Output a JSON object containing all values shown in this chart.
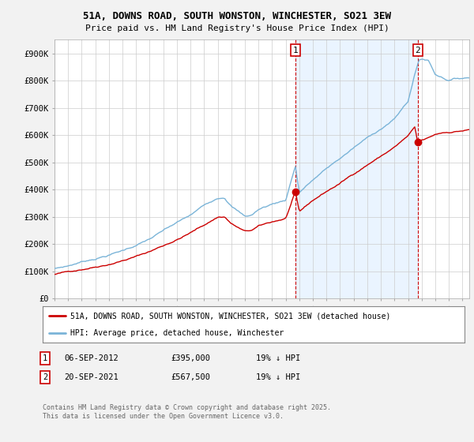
{
  "title_line1": "51A, DOWNS ROAD, SOUTH WONSTON, WINCHESTER, SO21 3EW",
  "title_line2": "Price paid vs. HM Land Registry's House Price Index (HPI)",
  "ylim": [
    0,
    950000
  ],
  "yticks": [
    0,
    100000,
    200000,
    300000,
    400000,
    500000,
    600000,
    700000,
    800000,
    900000
  ],
  "ytick_labels": [
    "£0",
    "£100K",
    "£200K",
    "£300K",
    "£400K",
    "£500K",
    "£600K",
    "£700K",
    "£800K",
    "£900K"
  ],
  "hpi_color": "#7ab4d8",
  "hpi_fill_color": "#ddeeff",
  "price_color": "#cc0000",
  "vline_color": "#cc0000",
  "background_color": "#f2f2f2",
  "plot_bg_color": "#ffffff",
  "legend_label_red": "51A, DOWNS ROAD, SOUTH WONSTON, WINCHESTER, SO21 3EW (detached house)",
  "legend_label_blue": "HPI: Average price, detached house, Winchester",
  "sale1_label": "1",
  "sale1_date": "06-SEP-2012",
  "sale1_price": "£395,000",
  "sale1_note": "19% ↓ HPI",
  "sale2_label": "2",
  "sale2_date": "20-SEP-2021",
  "sale2_price": "£567,500",
  "sale2_note": "19% ↓ HPI",
  "footnote": "Contains HM Land Registry data © Crown copyright and database right 2025.\nThis data is licensed under the Open Government Licence v3.0.",
  "sale1_x": 2012.71,
  "sale2_x": 2021.72,
  "sale1_y": 395000,
  "sale2_y": 567500,
  "xmin": 1995,
  "xmax": 2025.5
}
